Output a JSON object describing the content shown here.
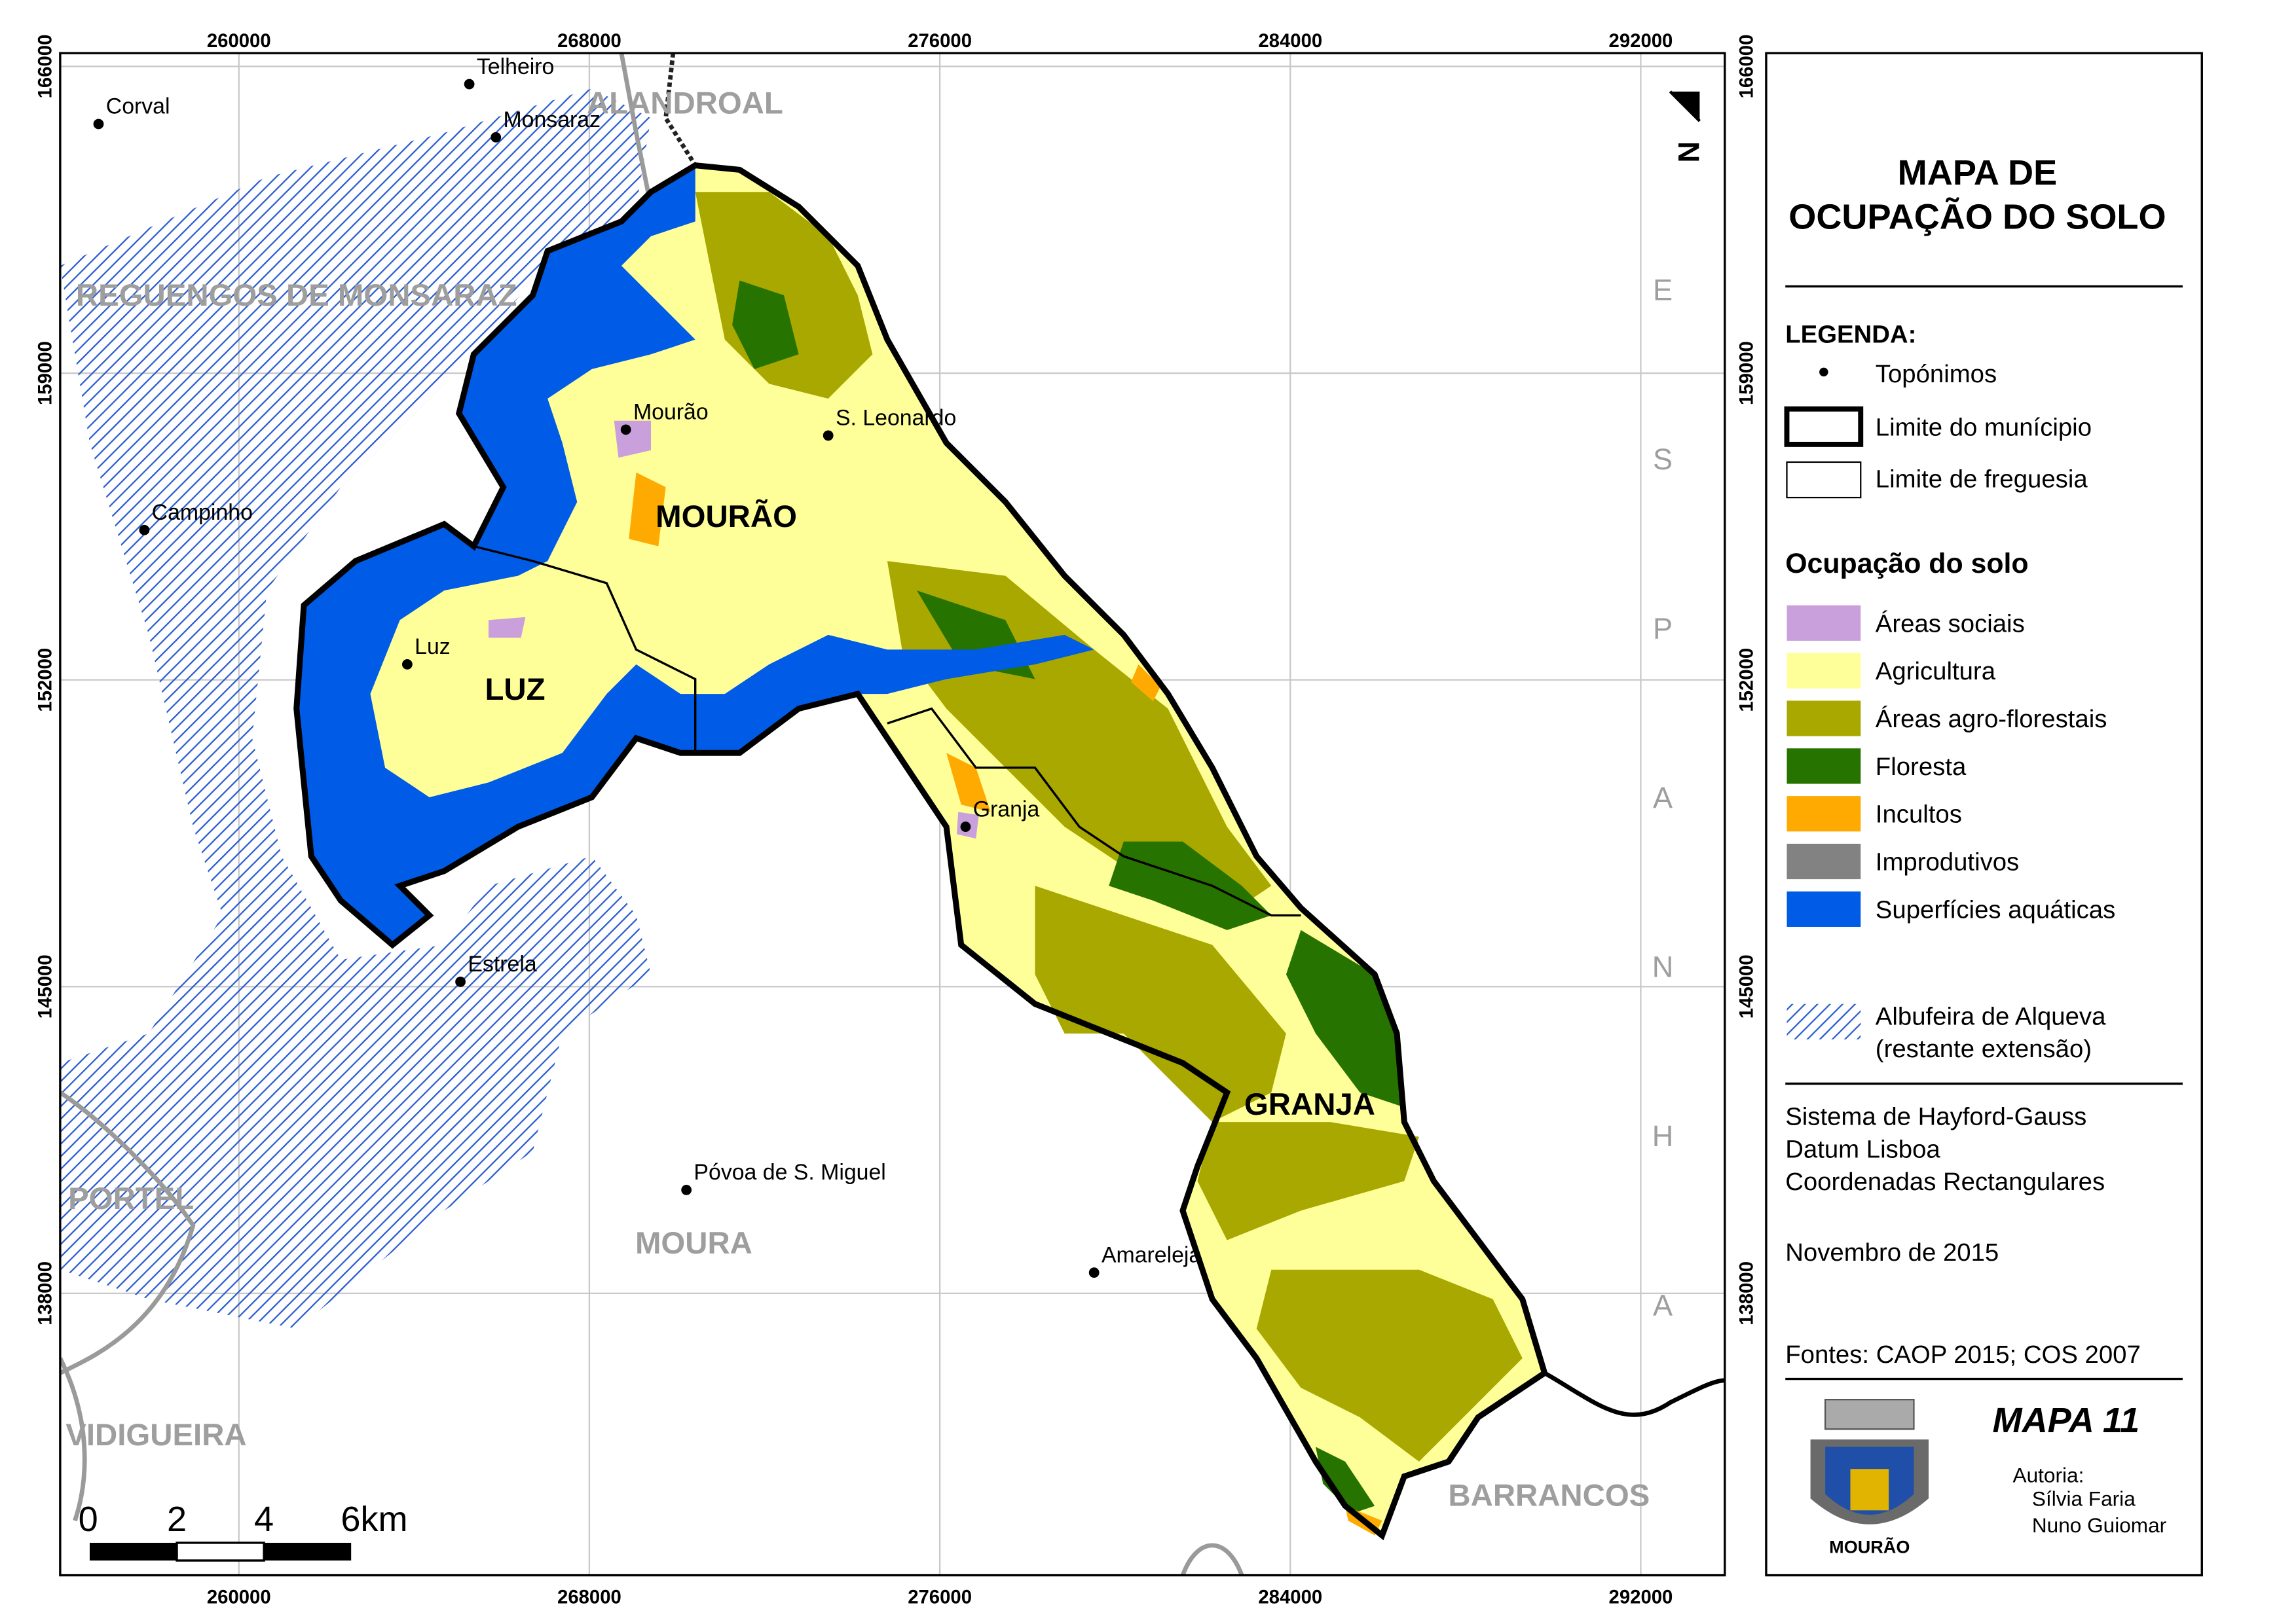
{
  "map": {
    "x_ticks": [
      260000,
      268000,
      276000,
      284000,
      292000
    ],
    "y_ticks": [
      166000,
      159000,
      152000,
      145000,
      138000
    ],
    "places": [
      "Corval",
      "Telheiro",
      "Monsaraz",
      "Mourão",
      "S. Leonardo",
      "Campinho",
      "Luz",
      "Granja",
      "Estrela",
      "Póvoa de S. Miguel",
      "Amareleja"
    ],
    "municipalities": [
      "ALANDROAL",
      "REGUENGOS DE MONSARAZ",
      "PORTEL",
      "MOURA",
      "VIDIGUEIRA",
      "BARRANCOS"
    ],
    "parishes": [
      "MOURÃO",
      "LUZ",
      "GRANJA"
    ],
    "country": "ESPANHA",
    "north": "N",
    "scale_labels": [
      "0",
      "2",
      "4",
      "6km"
    ]
  },
  "panel": {
    "title": [
      "MAPA DE",
      "OCUPAÇÃO DO SOLO"
    ],
    "legend_title": "LEGENDA:",
    "legend": [
      "Topónimos",
      "Limite do munícipio",
      "Limite de freguesia"
    ],
    "land_use_title": "Ocupação do solo",
    "land_use": [
      {
        "label": "Áreas sociais",
        "color": "#c9a0dc"
      },
      {
        "label": "Agricultura",
        "color": "#ffff99"
      },
      {
        "label": "Áreas agro-florestais",
        "color": "#a8a800"
      },
      {
        "label": "Floresta",
        "color": "#267300"
      },
      {
        "label": "Incultos",
        "color": "#ffaa00"
      },
      {
        "label": "Improdutivos",
        "color": "#828282"
      },
      {
        "label": "Superfícies aquáticas",
        "color": "#005ce6"
      }
    ],
    "reservoir": [
      "Albufeira de Alqueva",
      "(restante extensão)"
    ],
    "projection": [
      "Sistema de Hayford-Gauss",
      "Datum Lisboa",
      "Coordenadas Rectangulares"
    ],
    "date": "Novembro de 2015",
    "sources": "Fontes: CAOP 2015; COS 2007",
    "map_number": "MAPA 11",
    "author_title": "Autoria:",
    "authors": [
      "Sílvia Faria",
      "Nuno Guiomar"
    ],
    "coat_label": "MOURÃO"
  }
}
